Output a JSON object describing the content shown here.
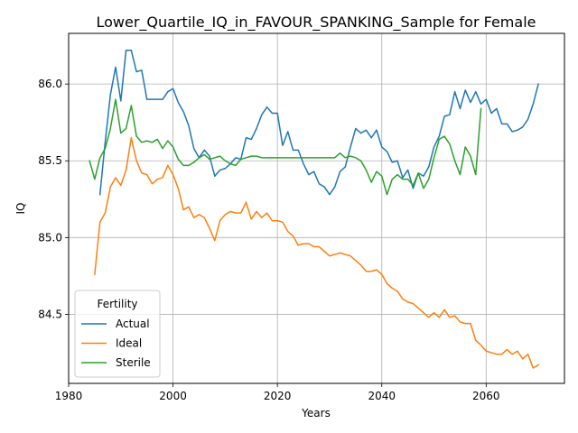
{
  "chart_data": {
    "type": "line",
    "title": "Lower_Quartile_IQ_in_FAVOUR_SPANKING_Sample for Female",
    "xlabel": "Years",
    "ylabel": "IQ",
    "xlim": [
      1980,
      2075
    ],
    "ylim": [
      84.05,
      86.33
    ],
    "xticks": [
      1980,
      2000,
      2020,
      2040,
      2060
    ],
    "yticks": [
      84.5,
      85.0,
      85.5,
      86.0
    ],
    "xtick_labels": [
      "1980",
      "2000",
      "2020",
      "2040",
      "2060"
    ],
    "ytick_labels": [
      "84.5",
      "85.0",
      "85.5",
      "86.0"
    ],
    "grid": true,
    "legend": {
      "title": "Fertility",
      "location": "lower-left"
    },
    "series": [
      {
        "name": "Actual",
        "color": "#1f77b4",
        "x": [
          1985,
          1986,
          1987,
          1988,
          1989,
          1990,
          1991,
          1992,
          1993,
          1994,
          1995,
          1996,
          1997,
          1998,
          1999,
          2000,
          2001,
          2002,
          2003,
          2004,
          2005,
          2006,
          2007,
          2008,
          2009,
          2010,
          2011,
          2012,
          2013,
          2014,
          2015,
          2016,
          2017,
          2018,
          2019,
          2020,
          2021,
          2022,
          2023,
          2024,
          2025,
          2026,
          2027,
          2028,
          2029,
          2030,
          2031,
          2032,
          2033,
          2034,
          2035,
          2036,
          2037,
          2038,
          2039,
          2040,
          2041,
          2042,
          2043,
          2044,
          2045,
          2046,
          2047,
          2048,
          2049,
          2050,
          2051,
          2052,
          2053,
          2054,
          2055,
          2056,
          2057,
          2058,
          2059,
          2060,
          2061,
          2062,
          2063,
          2064,
          2065,
          2066,
          2067,
          2068,
          2069,
          2070
        ],
        "values": [
          null,
          85.28,
          85.62,
          85.93,
          86.11,
          85.89,
          86.22,
          86.22,
          86.08,
          86.09,
          85.9,
          85.9,
          85.9,
          85.9,
          85.95,
          85.97,
          85.88,
          85.82,
          85.73,
          85.58,
          85.52,
          85.57,
          85.53,
          85.4,
          85.44,
          85.45,
          85.48,
          85.52,
          85.51,
          85.65,
          85.64,
          85.71,
          85.8,
          85.85,
          85.81,
          85.81,
          85.6,
          85.69,
          85.57,
          85.57,
          85.48,
          85.41,
          85.43,
          85.35,
          85.33,
          85.28,
          85.33,
          85.43,
          85.46,
          85.59,
          85.71,
          85.68,
          85.7,
          85.65,
          85.7,
          85.59,
          85.56,
          85.49,
          85.5,
          85.39,
          85.44,
          85.32,
          85.42,
          85.4,
          85.46,
          85.59,
          85.66,
          85.79,
          85.8,
          85.95,
          85.84,
          85.96,
          85.88,
          85.95,
          85.87,
          85.9,
          85.81,
          85.84,
          85.74,
          85.74,
          85.69,
          85.7,
          85.72,
          85.77,
          85.87,
          86.0
        ]
      },
      {
        "name": "Ideal",
        "color": "#ff7f0e",
        "x": [
          1985,
          1986,
          1987,
          1988,
          1989,
          1990,
          1991,
          1992,
          1993,
          1994,
          1995,
          1996,
          1997,
          1998,
          1999,
          2000,
          2001,
          2002,
          2003,
          2004,
          2005,
          2006,
          2007,
          2008,
          2009,
          2010,
          2011,
          2012,
          2013,
          2014,
          2015,
          2016,
          2017,
          2018,
          2019,
          2020,
          2021,
          2022,
          2023,
          2024,
          2025,
          2026,
          2027,
          2028,
          2029,
          2030,
          2031,
          2032,
          2033,
          2034,
          2035,
          2036,
          2037,
          2038,
          2039,
          2040,
          2041,
          2042,
          2043,
          2044,
          2045,
          2046,
          2047,
          2048,
          2049,
          2050,
          2051,
          2052,
          2053,
          2054,
          2055,
          2056,
          2057,
          2058,
          2059,
          2060,
          2061,
          2062,
          2063,
          2064,
          2065,
          2066,
          2067,
          2068,
          2069,
          2070
        ],
        "values": [
          84.76,
          85.1,
          85.16,
          85.33,
          85.39,
          85.34,
          85.44,
          85.65,
          85.5,
          85.42,
          85.41,
          85.35,
          85.38,
          85.39,
          85.47,
          85.41,
          85.32,
          85.18,
          85.2,
          85.13,
          85.15,
          85.13,
          85.06,
          84.98,
          85.11,
          85.15,
          85.17,
          85.16,
          85.16,
          85.23,
          85.12,
          85.17,
          85.13,
          85.16,
          85.11,
          85.11,
          85.1,
          85.04,
          85.01,
          84.95,
          84.96,
          84.96,
          84.94,
          84.94,
          84.91,
          84.88,
          84.89,
          84.9,
          84.89,
          84.88,
          84.85,
          84.82,
          84.78,
          84.78,
          84.79,
          84.76,
          84.7,
          84.67,
          84.65,
          84.6,
          84.58,
          84.57,
          84.54,
          84.51,
          84.48,
          84.51,
          84.48,
          84.53,
          84.48,
          84.49,
          84.45,
          84.44,
          84.44,
          84.33,
          84.3,
          84.26,
          84.25,
          84.24,
          84.24,
          84.27,
          84.24,
          84.26,
          84.21,
          84.24,
          84.15,
          84.17
        ]
      },
      {
        "name": "Sterile",
        "color": "#2ca02c",
        "x": [
          1984,
          1985,
          1986,
          1987,
          1988,
          1989,
          1990,
          1991,
          1992,
          1993,
          1994,
          1995,
          1996,
          1997,
          1998,
          1999,
          2000,
          2001,
          2002,
          2003,
          2004,
          2005,
          2006,
          2007,
          2008,
          2009,
          2010,
          2011,
          2012,
          2013,
          2014,
          2015,
          2016,
          2017,
          2018,
          2019,
          2020,
          2021,
          2022,
          2023,
          2024,
          2025,
          2026,
          2027,
          2028,
          2029,
          2030,
          2031,
          2032,
          2033,
          2034,
          2035,
          2036,
          2037,
          2038,
          2039,
          2040,
          2041,
          2042,
          2043,
          2044,
          2045,
          2046,
          2047,
          2048,
          2049,
          2050,
          2051,
          2052,
          2053,
          2054,
          2055,
          2056,
          2057,
          2058,
          2059
        ],
        "values": [
          85.5,
          85.38,
          85.52,
          85.58,
          85.71,
          85.9,
          85.68,
          85.71,
          85.86,
          85.66,
          85.62,
          85.63,
          85.62,
          85.64,
          85.58,
          85.63,
          85.59,
          85.51,
          85.47,
          85.47,
          85.49,
          85.52,
          85.54,
          85.51,
          85.52,
          85.53,
          85.5,
          85.48,
          85.47,
          85.51,
          85.52,
          85.53,
          85.53,
          85.52,
          85.52,
          85.52,
          85.52,
          85.52,
          85.52,
          85.52,
          85.52,
          85.52,
          85.52,
          85.52,
          85.52,
          85.52,
          85.52,
          85.52,
          85.55,
          85.52,
          85.53,
          85.52,
          85.5,
          85.44,
          85.36,
          85.43,
          85.4,
          85.28,
          85.38,
          85.41,
          85.38,
          85.38,
          85.34,
          85.42,
          85.32,
          85.38,
          85.52,
          85.64,
          85.66,
          85.61,
          85.5,
          85.41,
          85.59,
          85.53,
          85.41,
          85.84
        ]
      }
    ]
  }
}
